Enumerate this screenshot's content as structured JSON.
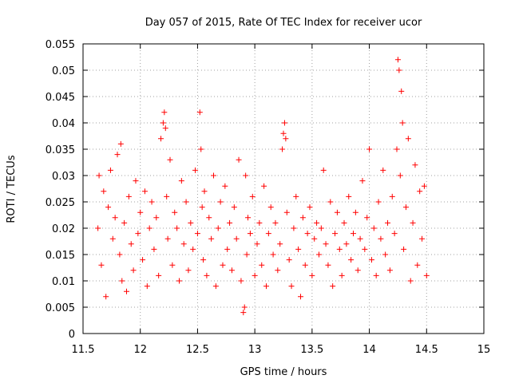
{
  "chart_data": {
    "type": "scatter",
    "title": "Day 057 of 2015, Rate Of TEC Index for receiver ucor",
    "xlabel": "GPS time / hours",
    "ylabel": "ROTI / TECUs",
    "xlim": [
      11.5,
      15
    ],
    "ylim": [
      0,
      0.055
    ],
    "xticks": [
      "11.5",
      "12",
      "12.5",
      "13",
      "13.5",
      "14",
      "14.5",
      "15"
    ],
    "yticks": [
      "0",
      "0.005",
      "0.01",
      "0.015",
      "0.02",
      "0.025",
      "0.03",
      "0.035",
      "0.04",
      "0.045",
      "0.05",
      "0.055"
    ],
    "grid": true,
    "marker": "+",
    "series_color": "#ff0000",
    "series": [
      {
        "name": "ROTI",
        "x": [
          11.63,
          11.64,
          11.66,
          11.68,
          11.7,
          11.72,
          11.74,
          11.76,
          11.78,
          11.8,
          11.82,
          11.83,
          11.84,
          11.86,
          11.88,
          11.9,
          11.92,
          11.94,
          11.96,
          11.98,
          12.0,
          12.02,
          12.04,
          12.06,
          12.08,
          12.1,
          12.12,
          12.14,
          12.16,
          12.18,
          12.2,
          12.21,
          12.22,
          12.23,
          12.24,
          12.26,
          12.28,
          12.3,
          12.32,
          12.34,
          12.36,
          12.38,
          12.4,
          12.42,
          12.44,
          12.46,
          12.48,
          12.5,
          12.52,
          12.53,
          12.54,
          12.55,
          12.56,
          12.58,
          12.6,
          12.62,
          12.64,
          12.66,
          12.68,
          12.7,
          12.72,
          12.74,
          12.76,
          12.78,
          12.8,
          12.82,
          12.84,
          12.86,
          12.88,
          12.9,
          12.91,
          12.92,
          12.93,
          12.94,
          12.96,
          12.98,
          13.0,
          13.02,
          13.04,
          13.06,
          13.08,
          13.1,
          13.12,
          13.14,
          13.16,
          13.18,
          13.2,
          13.22,
          13.24,
          13.25,
          13.26,
          13.27,
          13.28,
          13.3,
          13.32,
          13.34,
          13.36,
          13.38,
          13.4,
          13.42,
          13.44,
          13.46,
          13.48,
          13.5,
          13.52,
          13.54,
          13.56,
          13.58,
          13.6,
          13.62,
          13.64,
          13.66,
          13.68,
          13.7,
          13.72,
          13.74,
          13.76,
          13.78,
          13.8,
          13.82,
          13.84,
          13.86,
          13.88,
          13.9,
          13.92,
          13.94,
          13.96,
          13.98,
          14.0,
          14.02,
          14.04,
          14.06,
          14.08,
          14.1,
          14.12,
          14.14,
          14.16,
          14.18,
          14.2,
          14.22,
          14.24,
          14.25,
          14.26,
          14.27,
          14.28,
          14.29,
          14.3,
          14.32,
          14.34,
          14.36,
          14.38,
          14.4,
          14.42,
          14.44,
          14.46,
          14.48,
          14.5
        ],
        "y": [
          0.02,
          0.03,
          0.013,
          0.027,
          0.007,
          0.024,
          0.031,
          0.018,
          0.022,
          0.034,
          0.015,
          0.036,
          0.01,
          0.021,
          0.008,
          0.026,
          0.017,
          0.012,
          0.029,
          0.019,
          0.023,
          0.014,
          0.027,
          0.009,
          0.02,
          0.025,
          0.016,
          0.022,
          0.011,
          0.037,
          0.04,
          0.042,
          0.039,
          0.026,
          0.018,
          0.033,
          0.013,
          0.023,
          0.02,
          0.01,
          0.029,
          0.017,
          0.025,
          0.012,
          0.021,
          0.016,
          0.031,
          0.019,
          0.042,
          0.035,
          0.024,
          0.014,
          0.027,
          0.011,
          0.022,
          0.018,
          0.03,
          0.009,
          0.02,
          0.025,
          0.013,
          0.028,
          0.016,
          0.021,
          0.012,
          0.024,
          0.018,
          0.033,
          0.01,
          0.004,
          0.005,
          0.03,
          0.015,
          0.022,
          0.019,
          0.026,
          0.011,
          0.017,
          0.021,
          0.013,
          0.028,
          0.009,
          0.019,
          0.024,
          0.015,
          0.021,
          0.012,
          0.017,
          0.035,
          0.038,
          0.04,
          0.037,
          0.023,
          0.014,
          0.009,
          0.02,
          0.026,
          0.016,
          0.007,
          0.022,
          0.013,
          0.019,
          0.024,
          0.011,
          0.018,
          0.021,
          0.015,
          0.02,
          0.031,
          0.017,
          0.013,
          0.025,
          0.009,
          0.019,
          0.023,
          0.016,
          0.011,
          0.021,
          0.017,
          0.026,
          0.014,
          0.019,
          0.023,
          0.012,
          0.018,
          0.029,
          0.016,
          0.022,
          0.035,
          0.014,
          0.02,
          0.011,
          0.025,
          0.018,
          0.031,
          0.015,
          0.021,
          0.012,
          0.026,
          0.019,
          0.035,
          0.052,
          0.05,
          0.03,
          0.046,
          0.04,
          0.016,
          0.024,
          0.037,
          0.01,
          0.021,
          0.032,
          0.013,
          0.027,
          0.018,
          0.028,
          0.011
        ]
      }
    ]
  }
}
